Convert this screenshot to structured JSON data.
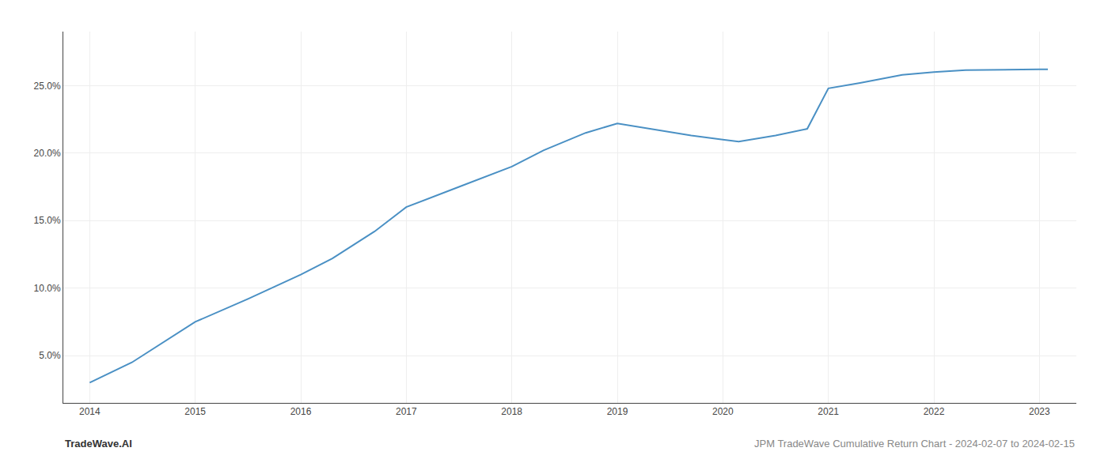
{
  "chart_data": {
    "type": "line",
    "x": [
      2014,
      2014.4,
      2015,
      2015.5,
      2016,
      2016.3,
      2016.7,
      2017,
      2017.5,
      2018,
      2018.3,
      2018.7,
      2019,
      2019.3,
      2019.7,
      2020,
      2020.15,
      2020.5,
      2020.8,
      2021,
      2021.3,
      2021.7,
      2022,
      2022.3,
      2022.7,
      2023,
      2023.08
    ],
    "values": [
      3.0,
      4.5,
      7.5,
      9.2,
      11.0,
      12.2,
      14.2,
      16.0,
      17.5,
      19.0,
      20.2,
      21.5,
      22.2,
      21.8,
      21.3,
      21.0,
      20.85,
      21.3,
      21.8,
      24.8,
      25.2,
      25.8,
      26.0,
      26.15,
      26.2,
      26.2,
      26.2
    ],
    "color": "#4a90c4",
    "xlim": [
      2013.75,
      2023.35
    ],
    "xticks": [
      2014,
      2015,
      2016,
      2017,
      2018,
      2019,
      2020,
      2021,
      2022,
      2023
    ],
    "ylim": [
      1.5,
      29.0
    ],
    "yticks": [
      {
        "value": 5.0,
        "label": "5.0%"
      },
      {
        "value": 10.0,
        "label": "10.0%"
      },
      {
        "value": 15.0,
        "label": "15.0%"
      },
      {
        "value": 20.0,
        "label": "20.0%"
      },
      {
        "value": 25.0,
        "label": "25.0%"
      }
    ],
    "grid": true,
    "annotations": [
      "TradeWave.AI",
      "JPM TradeWave Cumulative Return Chart - 2024-02-07 to 2024-02-15"
    ]
  }
}
